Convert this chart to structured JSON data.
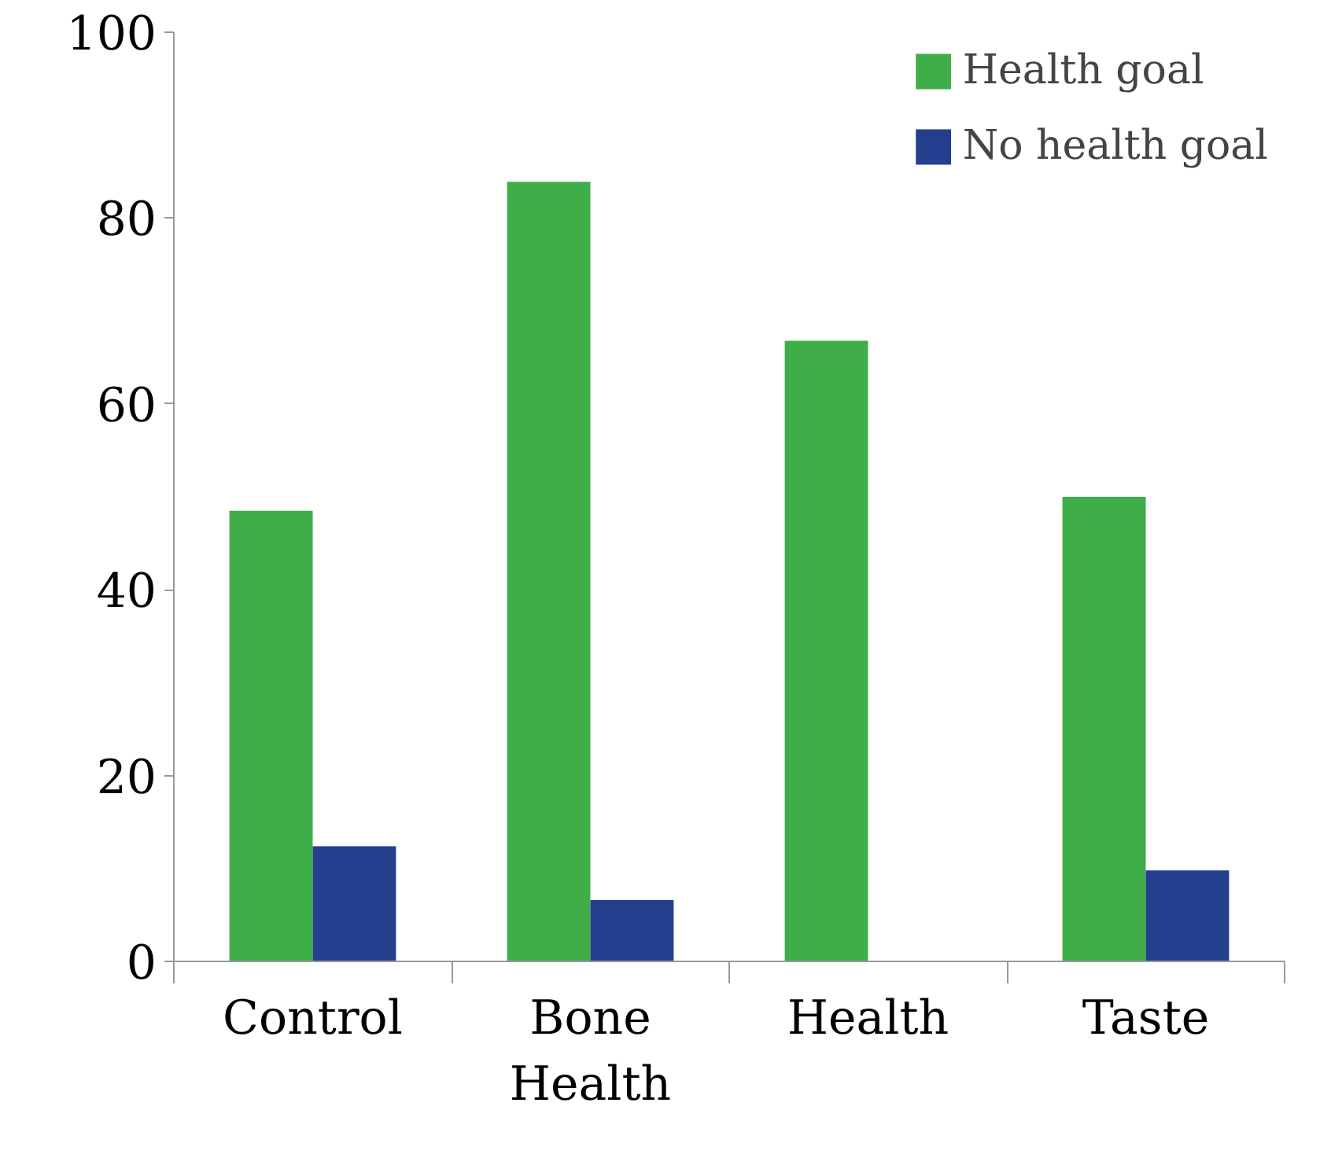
{
  "chart_data": {
    "type": "bar",
    "categories": [
      "Control",
      "Bone Health",
      "Health",
      "Taste"
    ],
    "series": [
      {
        "name": "Health goal",
        "color": "#3fae49",
        "values": [
          48.5,
          83.9,
          66.8,
          50
        ]
      },
      {
        "name": "No health goal",
        "color": "#253f8f",
        "values": [
          12.4,
          6.6,
          0,
          9.8
        ]
      }
    ],
    "ylim": [
      0,
      100
    ],
    "yticks": [
      0,
      20,
      40,
      60,
      80,
      100
    ],
    "grid": false,
    "legend": "top right"
  }
}
